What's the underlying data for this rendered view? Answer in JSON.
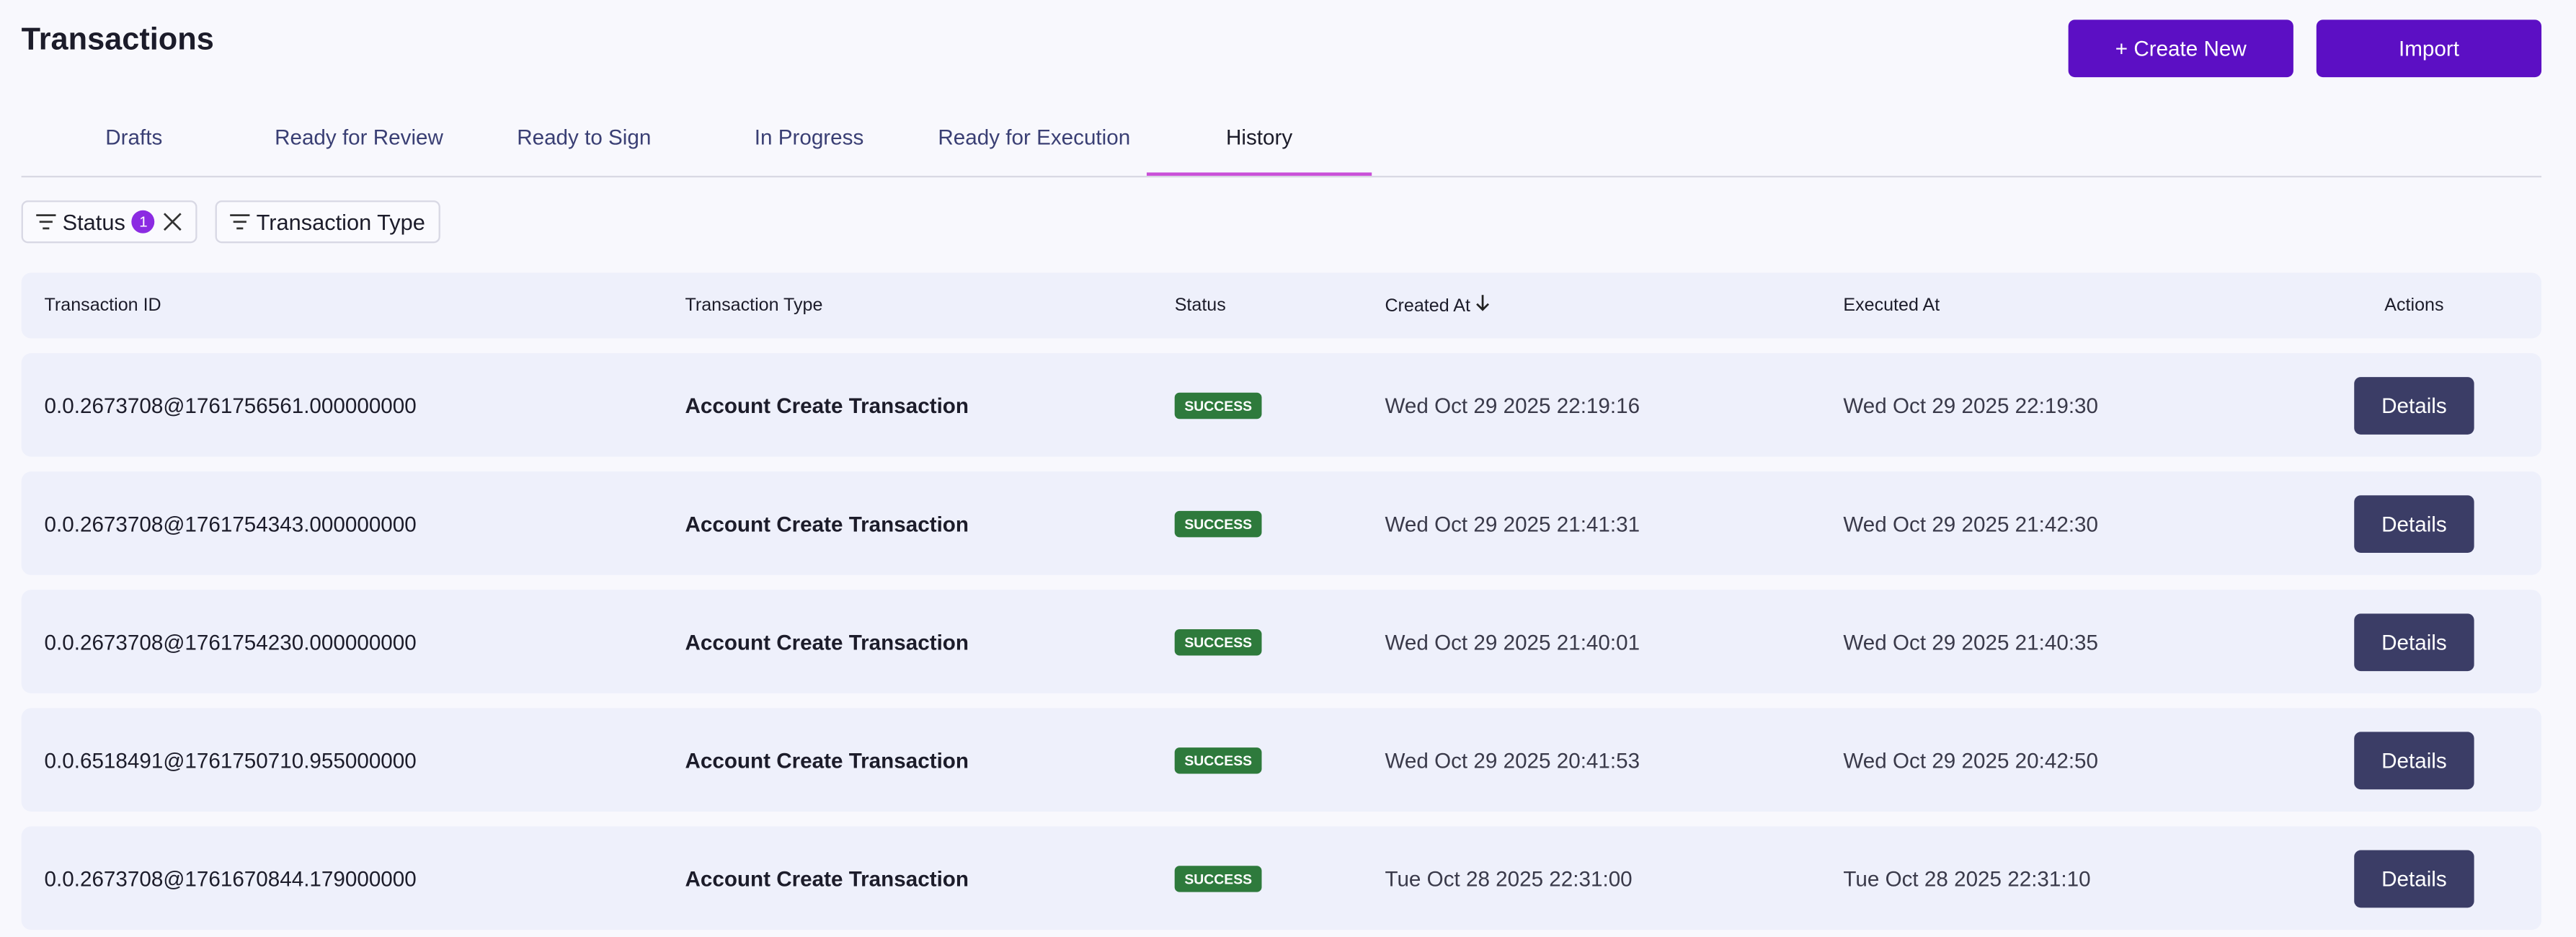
{
  "header": {
    "title": "Transactions",
    "buttons": [
      "+ Create New",
      "Import"
    ]
  },
  "tabs": {
    "items": [
      "Drafts",
      "Ready for Review",
      "Ready to Sign",
      "In Progress",
      "Ready for Execution",
      "History"
    ],
    "active": 5
  },
  "filters": [
    {
      "label": "Status",
      "count": "1"
    },
    {
      "label": "Transaction Type"
    }
  ],
  "table": {
    "columns": [
      "Transaction ID",
      "Transaction Type",
      "Status",
      "Created At",
      "Executed At",
      "Actions"
    ],
    "rows": [
      [
        "0.0.2673708@1761756561.000000000",
        "Account Create Transaction",
        "SUCCESS",
        "Wed Oct 29 2025 22:19:16",
        "Wed Oct 29 2025 22:19:30",
        "Details"
      ],
      [
        "0.0.2673708@1761754343.000000000",
        "Account Create Transaction",
        "SUCCESS",
        "Wed Oct 29 2025 21:41:31",
        "Wed Oct 29 2025 21:42:30",
        "Details"
      ],
      [
        "0.0.2673708@1761754230.000000000",
        "Account Create Transaction",
        "SUCCESS",
        "Wed Oct 29 2025 21:40:01",
        "Wed Oct 29 2025 21:40:35",
        "Details"
      ],
      [
        "0.0.6518491@1761750710.955000000",
        "Account Create Transaction",
        "SUCCESS",
        "Wed Oct 29 2025 20:41:53",
        "Wed Oct 29 2025 20:42:50",
        "Details"
      ],
      [
        "0.0.2673708@1761670844.179000000",
        "Account Create Transaction",
        "SUCCESS",
        "Tue Oct 28 2025 22:31:00",
        "Tue Oct 28 2025 22:31:10",
        "Details"
      ]
    ]
  }
}
